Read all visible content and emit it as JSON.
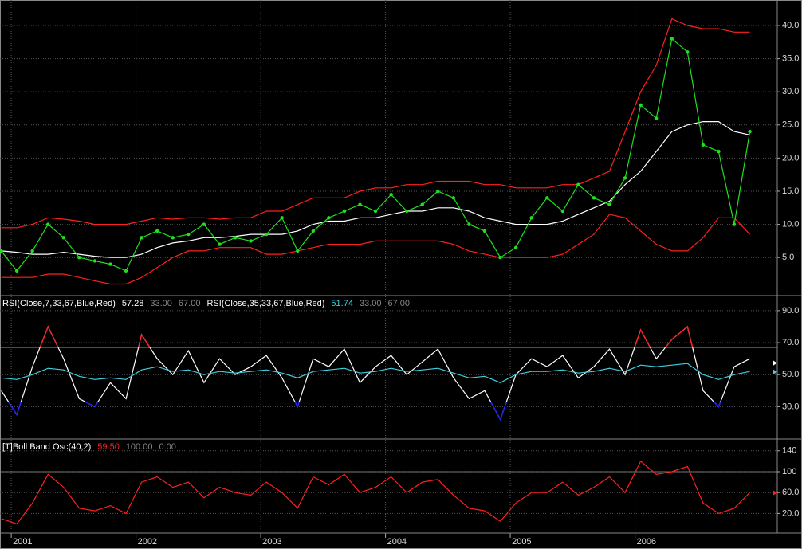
{
  "chart_data": [
    {
      "type": "line",
      "x": [
        2000.92,
        2001.045,
        2001.17,
        2001.295,
        2001.42,
        2001.545,
        2001.67,
        2001.795,
        2001.92,
        2002.045,
        2002.17,
        2002.295,
        2002.42,
        2002.545,
        2002.67,
        2002.795,
        2002.92,
        2003.045,
        2003.17,
        2003.295,
        2003.42,
        2003.545,
        2003.67,
        2003.795,
        2003.92,
        2004.045,
        2004.17,
        2004.295,
        2004.42,
        2004.545,
        2004.67,
        2004.795,
        2004.92,
        2005.045,
        2005.17,
        2005.295,
        2005.42,
        2005.545,
        2005.67,
        2005.795,
        2005.92,
        2006.045,
        2006.17,
        2006.295,
        2006.42,
        2006.545,
        2006.67,
        2006.795,
        2006.92
      ],
      "series": [
        {
          "color": "#ff2020",
          "values": [
            9.5,
            9.5,
            10,
            11,
            10.8,
            10.5,
            10,
            10,
            10,
            10.5,
            11,
            10.8,
            11,
            11,
            10.8,
            11,
            11,
            12,
            12,
            13,
            14,
            14,
            14,
            15,
            15.5,
            15.5,
            16,
            16,
            16.5,
            16.5,
            16.5,
            16,
            16,
            15.5,
            15.5,
            15.5,
            16,
            16,
            17,
            18,
            24,
            30,
            34,
            41,
            40,
            39.5,
            39.5,
            39,
            39
          ]
        },
        {
          "color": "#ff2020",
          "values": [
            2,
            2,
            2,
            2.5,
            2.5,
            2,
            1.5,
            1,
            1,
            2,
            3.5,
            5,
            6,
            6,
            6.5,
            6.5,
            6.5,
            5.5,
            5.5,
            6,
            6.5,
            7,
            7,
            7,
            7.5,
            7.5,
            7.5,
            7.5,
            7.5,
            7,
            6,
            5.5,
            5,
            5,
            5,
            5,
            5.5,
            7,
            8.5,
            11.5,
            11,
            9,
            7,
            6,
            6,
            8,
            11,
            11,
            8.5
          ]
        },
        {
          "color": "#ffffff",
          "values": [
            6,
            5.8,
            5.5,
            5.5,
            5.8,
            5.5,
            5.2,
            5,
            5,
            5.5,
            6.5,
            7.2,
            7.5,
            8,
            8,
            8.2,
            8.5,
            8.5,
            8.5,
            9,
            10,
            10.5,
            10.5,
            11,
            11,
            11.5,
            12,
            12,
            12.5,
            12.5,
            12,
            11,
            10.5,
            10,
            10,
            10,
            10.5,
            11.5,
            12.5,
            13.5,
            16,
            18,
            21,
            24,
            25,
            25.5,
            25.5,
            24,
            23.5
          ]
        },
        {
          "color": "#20e020",
          "markers": true,
          "values": [
            6,
            3,
            6,
            10,
            8,
            5,
            4.5,
            4,
            3,
            8,
            9,
            8,
            8.5,
            10,
            7,
            8,
            7.5,
            8.5,
            11,
            6,
            9,
            11,
            12,
            13,
            12,
            14.5,
            12,
            13,
            15,
            14,
            10,
            9,
            5,
            6.5,
            11,
            14,
            12,
            16,
            14,
            13,
            17,
            28,
            26,
            38,
            36,
            22,
            21,
            10,
            24
          ]
        }
      ],
      "ylim": [
        -0.5,
        43.6
      ],
      "yticks": [
        {
          "value": 5,
          "label": "5.0"
        },
        {
          "value": 10,
          "label": "10.0"
        },
        {
          "value": 15,
          "label": "15.0"
        },
        {
          "value": 20,
          "label": "20.0"
        },
        {
          "value": 25,
          "label": "25.0"
        },
        {
          "value": 30,
          "label": "30.0"
        },
        {
          "value": 35,
          "label": "35.0"
        },
        {
          "value": 40,
          "label": "40.0"
        }
      ],
      "grid": true
    },
    {
      "type": "line",
      "x": [
        2000.92,
        2001.045,
        2001.17,
        2001.295,
        2001.42,
        2001.545,
        2001.67,
        2001.795,
        2001.92,
        2002.045,
        2002.17,
        2002.295,
        2002.42,
        2002.545,
        2002.67,
        2002.795,
        2002.92,
        2003.045,
        2003.17,
        2003.295,
        2003.42,
        2003.545,
        2003.67,
        2003.795,
        2003.92,
        2004.045,
        2004.17,
        2004.295,
        2004.42,
        2004.545,
        2004.67,
        2004.795,
        2004.92,
        2005.045,
        2005.17,
        2005.295,
        2005.42,
        2005.545,
        2005.67,
        2005.795,
        2005.92,
        2006.045,
        2006.17,
        2006.295,
        2006.42,
        2006.545,
        2006.67,
        2006.795,
        2006.92
      ],
      "series": [
        {
          "name": "RSI(Close,7,33,67,Blue,Red)",
          "color": "#ffffff",
          "below_color": "#2020ff",
          "above_color": "#ff2020",
          "last": 57.28,
          "last_color": "#ffffff",
          "levels": [
            {
              "value": 33,
              "label": "33.00"
            },
            {
              "value": 67,
              "label": "67.00"
            }
          ],
          "values": [
            40,
            25,
            55,
            80,
            60,
            35,
            30,
            45,
            35,
            75,
            60,
            50,
            65,
            45,
            60,
            50,
            55,
            62,
            48,
            30,
            60,
            55,
            66,
            45,
            55,
            62,
            50,
            58,
            66,
            48,
            35,
            40,
            22,
            50,
            60,
            55,
            62,
            48,
            55,
            66,
            50,
            78,
            60,
            72,
            80,
            40,
            30,
            55,
            60
          ]
        },
        {
          "name": "RSI(Close,35,33,67,Blue,Red)",
          "color": "#40d0e0",
          "last": 51.74,
          "last_color": "#40d0e0",
          "levels": [
            {
              "value": 33,
              "label": "33.00"
            },
            {
              "value": 67,
              "label": "67.00"
            }
          ],
          "values": [
            48,
            47,
            50,
            54,
            53,
            49,
            47,
            48,
            47,
            53,
            55,
            52,
            53,
            50,
            52,
            51,
            52,
            53,
            51,
            48,
            52,
            53,
            54,
            51,
            52,
            54,
            52,
            53,
            54,
            51,
            48,
            49,
            45,
            50,
            52,
            52,
            53,
            51,
            52,
            54,
            52,
            56,
            55,
            56,
            57,
            50,
            47,
            50,
            52
          ]
        }
      ],
      "ylim": [
        10.8,
        98.4
      ],
      "yticks": [
        {
          "value": 30,
          "label": "30.0"
        },
        {
          "value": 50,
          "label": "50.0"
        },
        {
          "value": 70,
          "label": "70.0"
        },
        {
          "value": 90,
          "label": "90.0"
        }
      ],
      "grid": true
    },
    {
      "type": "line",
      "x": [
        2000.92,
        2001.045,
        2001.17,
        2001.295,
        2001.42,
        2001.545,
        2001.67,
        2001.795,
        2001.92,
        2002.045,
        2002.17,
        2002.295,
        2002.42,
        2002.545,
        2002.67,
        2002.795,
        2002.92,
        2003.045,
        2003.17,
        2003.295,
        2003.42,
        2003.545,
        2003.67,
        2003.795,
        2003.92,
        2004.045,
        2004.17,
        2004.295,
        2004.42,
        2004.545,
        2004.67,
        2004.795,
        2004.92,
        2005.045,
        2005.17,
        2005.295,
        2005.42,
        2005.545,
        2005.67,
        2005.795,
        2005.92,
        2006.045,
        2006.17,
        2006.295,
        2006.42,
        2006.545,
        2006.67,
        2006.795,
        2006.92
      ],
      "series": [
        {
          "name": "[T]Boll Band Osc(40,2)",
          "color": "#ff2020",
          "last": {
            "value": 59.5,
            "label": "59.50"
          },
          "last_color": "#ff2020",
          "levels": [
            {
              "value": 100,
              "label": "100.00"
            },
            {
              "value": 0,
              "label": "0.00"
            }
          ],
          "values": [
            10,
            0,
            40,
            95,
            70,
            30,
            25,
            35,
            20,
            80,
            90,
            70,
            80,
            50,
            70,
            60,
            55,
            80,
            60,
            30,
            90,
            75,
            95,
            60,
            70,
            90,
            60,
            80,
            85,
            55,
            30,
            25,
            5,
            40,
            60,
            60,
            80,
            55,
            70,
            90,
            60,
            120,
            95,
            100,
            110,
            40,
            20,
            30,
            60
          ]
        }
      ],
      "ylim": [
        -14.5,
        159.5
      ],
      "yticks": [
        {
          "value": 20,
          "label": "20.0"
        },
        {
          "value": 60,
          "label": "60.0"
        },
        100,
        140
      ],
      "grid": true,
      "xlim": [
        2000.91,
        2007.14
      ],
      "xticks": [
        2001,
        2002,
        2003,
        2004,
        2005,
        2006
      ]
    }
  ]
}
